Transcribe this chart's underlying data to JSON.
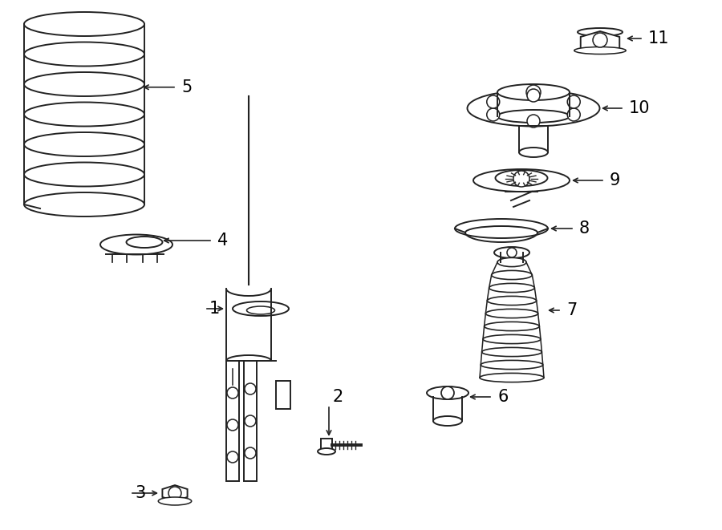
{
  "background_color": "#ffffff",
  "line_color": "#222222",
  "label_color": "#000000",
  "fig_width": 9.0,
  "fig_height": 6.61,
  "dpi": 100
}
